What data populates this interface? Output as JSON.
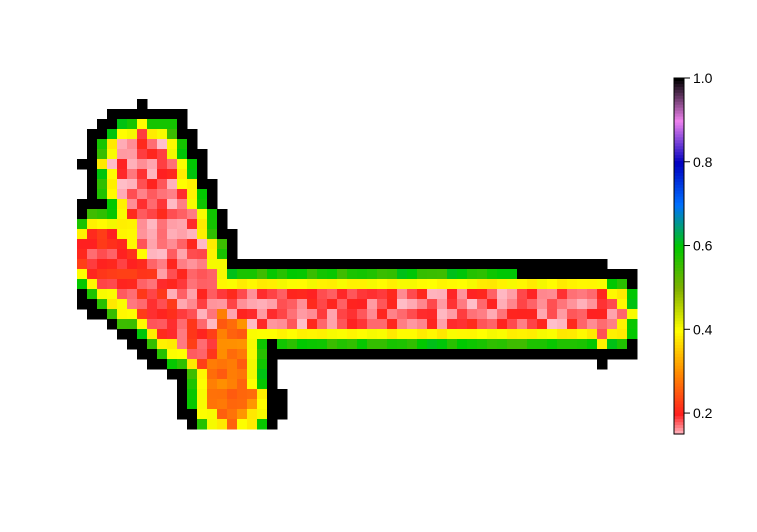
{
  "chart_data": {
    "type": "heatmap",
    "title": "",
    "xlabel": "",
    "ylabel": "",
    "axes_visible": false,
    "grid": false,
    "legend_placement": "right",
    "colorbar": {
      "range": [
        0.15,
        1.0
      ],
      "ticks": [
        0.2,
        0.4,
        0.6,
        0.8,
        1.0
      ],
      "tick_labels": [
        "0.2",
        "0.4",
        "0.6",
        "0.8",
        "1.0"
      ],
      "colors": [
        {
          "value": 0.15,
          "color": "#ffc0cb"
        },
        {
          "value": 0.2,
          "color": "#ff2020"
        },
        {
          "value": 0.3,
          "color": "#ff8c00"
        },
        {
          "value": 0.4,
          "color": "#ffff00"
        },
        {
          "value": 0.5,
          "color": "#7fb000"
        },
        {
          "value": 0.6,
          "color": "#00c800"
        },
        {
          "value": 0.7,
          "color": "#0070ff"
        },
        {
          "value": 0.8,
          "color": "#0000c0"
        },
        {
          "value": 0.9,
          "color": "#ee82ee"
        },
        {
          "value": 1.0,
          "color": "#000000"
        }
      ]
    },
    "grid_size": {
      "cols": 56,
      "rows": 33
    },
    "region": {
      "description_of_values": "Butterfly-shaped field: interior ~0.15-0.3 (pink/red), rim ~0.4 (yellow), outer rim ~0.55-0.65 (green), boundary 1.0 (black)",
      "arms": [
        {
          "name": "upper-left",
          "interior_value": 0.2
        },
        {
          "name": "horizontal",
          "interior_value": 0.2
        },
        {
          "name": "lower",
          "interior_value": 0.3
        }
      ]
    }
  }
}
